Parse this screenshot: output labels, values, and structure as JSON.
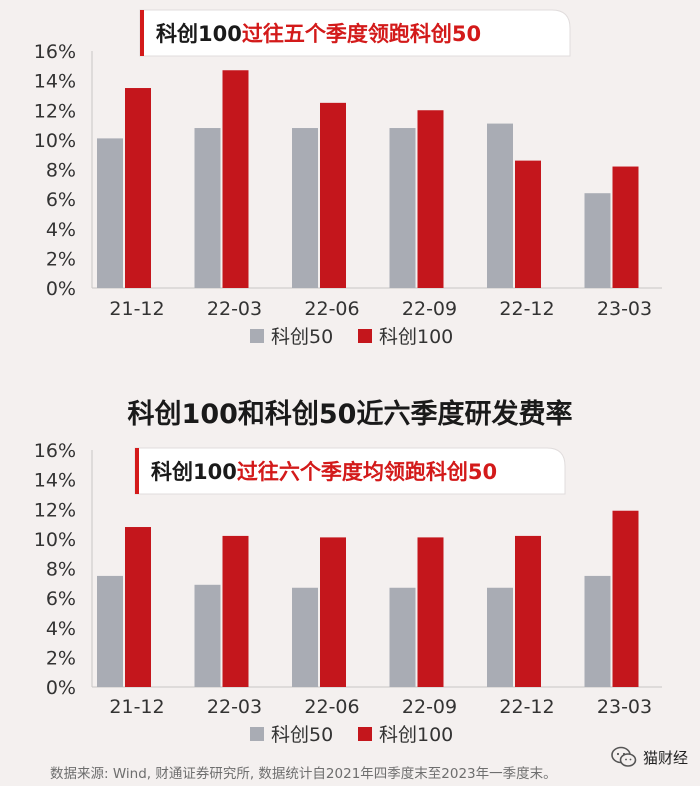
{
  "section_title": "科创100和科创50近六季度研发费率",
  "footer": {
    "source": "数据来源: Wind, 财通证券研究所, 数据统计自2021年四季度末至2023年一季度末。"
  },
  "brand": {
    "label": "猫财经"
  },
  "colors": {
    "kc50": "#a9acb4",
    "kc100": "#c4161c",
    "accent": "#d31a1a"
  },
  "chart_data": [
    {
      "type": "bar",
      "banner": {
        "prefix": "科创100",
        "suffix": "过往五个季度领跑科创50"
      },
      "categories": [
        "21-12",
        "22-03",
        "22-06",
        "22-09",
        "22-12",
        "23-03"
      ],
      "yticks": [
        "16%",
        "14%",
        "12%",
        "10%",
        "8%",
        "6%",
        "4%",
        "2%",
        "0%"
      ],
      "ylim": [
        0,
        16
      ],
      "series": [
        {
          "name": "科创50",
          "values": [
            10.1,
            10.8,
            10.8,
            10.8,
            11.1,
            6.4
          ]
        },
        {
          "name": "科创100",
          "values": [
            13.5,
            14.7,
            12.5,
            12.0,
            8.6,
            8.2
          ]
        }
      ],
      "legend": "bottom-center",
      "grid": false
    },
    {
      "type": "bar",
      "banner": {
        "prefix": "科创100",
        "suffix": "过往六个季度均领跑科创50"
      },
      "categories": [
        "21-12",
        "22-03",
        "22-06",
        "22-09",
        "22-12",
        "23-03"
      ],
      "yticks": [
        "16%",
        "14%",
        "12%",
        "10%",
        "8%",
        "6%",
        "4%",
        "2%",
        "0%"
      ],
      "ylim": [
        0,
        16
      ],
      "series": [
        {
          "name": "科创50",
          "values": [
            7.5,
            6.9,
            6.7,
            6.7,
            6.7,
            7.5
          ]
        },
        {
          "name": "科创100",
          "values": [
            10.8,
            10.2,
            10.1,
            10.1,
            10.2,
            11.9
          ]
        }
      ],
      "legend": "bottom-center",
      "grid": false
    }
  ]
}
